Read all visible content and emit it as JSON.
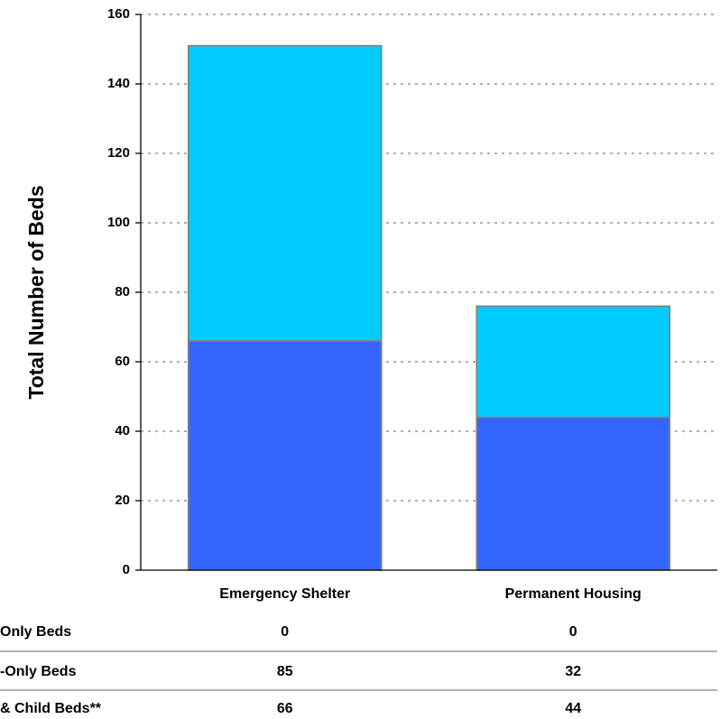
{
  "chart_data": {
    "type": "bar",
    "stacked": true,
    "categories": [
      "Emergency Shelter",
      "Permanent Housing"
    ],
    "ylabel": "Total Number of Beds",
    "ylim": [
      0,
      160
    ],
    "yticks": [
      0,
      20,
      40,
      60,
      80,
      100,
      120,
      140,
      160
    ],
    "grid": true,
    "series": [
      {
        "name": "& Child Beds**",
        "values": [
          66,
          44
        ],
        "color": "#3366ff"
      },
      {
        "name": "-Only Beds",
        "values": [
          85,
          32
        ],
        "color": "#00ccff"
      },
      {
        "name": "Only Beds",
        "values": [
          0,
          0
        ],
        "color": "#0000ff"
      }
    ]
  },
  "table": {
    "rows": [
      {
        "label": "Only Beds",
        "values": [
          "0",
          "0"
        ]
      },
      {
        "label": "-Only Beds",
        "values": [
          "85",
          "32"
        ]
      },
      {
        "label": "& Child Beds**",
        "values": [
          "66",
          "44"
        ]
      }
    ]
  }
}
